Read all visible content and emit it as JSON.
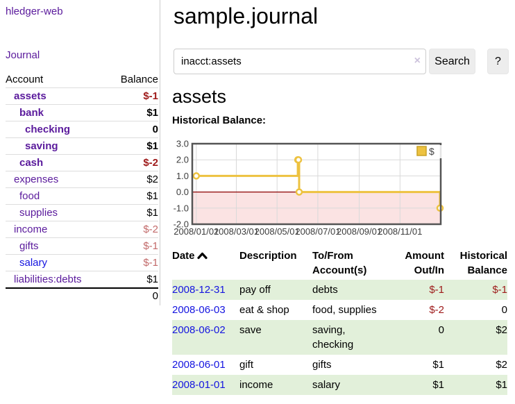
{
  "sidebar": {
    "brand": "hledger-web",
    "nav": {
      "journal": "Journal"
    },
    "accounts_table": {
      "headers": {
        "account": "Account",
        "balance": "Balance"
      },
      "rows": [
        {
          "account": "assets",
          "balance": "$-1",
          "depth": 1,
          "bold": true
        },
        {
          "account": "bank",
          "balance": "$1",
          "depth": 2,
          "bold": true
        },
        {
          "account": "checking",
          "balance": "0",
          "depth": 3,
          "bold": true
        },
        {
          "account": "saving",
          "balance": "$1",
          "depth": 3,
          "bold": true
        },
        {
          "account": "cash",
          "balance": "$-2",
          "depth": 2,
          "bold": true
        },
        {
          "account": "expenses",
          "balance": "$2",
          "depth": 1,
          "bold": false
        },
        {
          "account": "food",
          "balance": "$1",
          "depth": 2,
          "bold": false
        },
        {
          "account": "supplies",
          "balance": "$1",
          "depth": 2,
          "bold": false
        },
        {
          "account": "income",
          "balance": "$-2",
          "depth": 1,
          "bold": false
        },
        {
          "account": "gifts",
          "balance": "$-1",
          "depth": 2,
          "bold": false
        },
        {
          "account": "salary",
          "balance": "$-1",
          "depth": 2,
          "bold": false,
          "blue": true
        },
        {
          "account": "liabilities:debts",
          "balance": "$1",
          "depth": 1,
          "bold": false
        }
      ],
      "total": "0"
    }
  },
  "main": {
    "title": "sample.journal",
    "search": {
      "value": "inacct:assets",
      "clear_icon": "×",
      "search_button": "Search",
      "help_button": "?"
    },
    "account_heading": "assets",
    "section_label": "Historical Balance:"
  },
  "chart_data": {
    "type": "line",
    "step": true,
    "title": "Historical Balance",
    "series": [
      {
        "name": "$",
        "color": "#edc240",
        "points": [
          [
            "2008-01-01",
            1
          ],
          [
            "2008-06-01",
            2
          ],
          [
            "2008-06-02",
            2
          ],
          [
            "2008-06-03",
            0
          ],
          [
            "2008-12-31",
            -1
          ]
        ]
      }
    ],
    "x_ticks": [
      "2008/01/01",
      "2008/03/01",
      "2008/05/01",
      "2008/07/01",
      "2008/09/01",
      "2008/11/01"
    ],
    "y_ticks": [
      3.0,
      2.0,
      1.0,
      0.0,
      -1.0,
      -2.0
    ],
    "ylim": [
      -2,
      3
    ],
    "xlim": [
      "2007-12-26",
      "2009-01-01"
    ],
    "legend_position": "top-right",
    "grid": true,
    "negative_region_color": "#fbe3e3",
    "zero_line_color": "#8b0000",
    "border_color": "#545454",
    "grid_color": "#d9d9d9"
  },
  "transactions": {
    "headers": {
      "date": "Date",
      "description": "Description",
      "accounts": "To/From Account(s)",
      "amount": "Amount Out/In",
      "balance": "Historical Balance"
    },
    "sort_icon": "chevron-up-icon",
    "rows": [
      {
        "date": "2008-12-31",
        "description": "pay off",
        "accounts": "debts",
        "amount": "$-1",
        "balance": "$-1"
      },
      {
        "date": "2008-06-03",
        "description": "eat & shop",
        "accounts": "food, supplies",
        "amount": "$-2",
        "balance": "0"
      },
      {
        "date": "2008-06-02",
        "description": "save",
        "accounts": "saving, checking",
        "amount": "0",
        "balance": "$2"
      },
      {
        "date": "2008-06-01",
        "description": "gift",
        "accounts": "gifts",
        "amount": "$1",
        "balance": "$2"
      },
      {
        "date": "2008-01-01",
        "description": "income",
        "accounts": "salary",
        "amount": "$1",
        "balance": "$1"
      }
    ]
  }
}
